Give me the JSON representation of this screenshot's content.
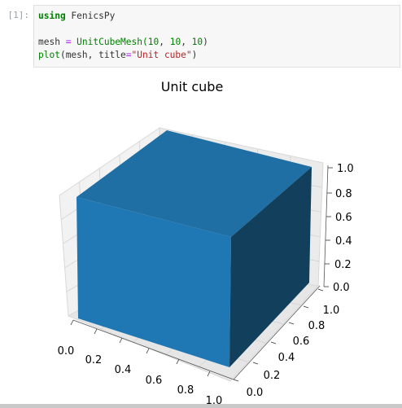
{
  "cell": {
    "prompt": "[1]:",
    "code": {
      "line1_kw": "using",
      "line1_rest": " FenicsPy",
      "line3_var": "mesh ",
      "line3_eq": "=",
      "line3_fn": " UnitCubeMesh(",
      "line3_a": "10",
      "line3_s1": ", ",
      "line3_b": "10",
      "line3_s2": ", ",
      "line3_c": "10",
      "line3_close": ")",
      "line4_fn": "plot",
      "line4_mid": "(mesh, title",
      "line4_eq": "=",
      "line4_str": "\"Unit cube\"",
      "line4_close": ")"
    }
  },
  "plot": {
    "title": "Unit cube",
    "face_colors": {
      "top": "#1f6fa5",
      "front": "#1f77b4",
      "right": "#123f5c"
    },
    "x_ticks": [
      "0.0",
      "0.2",
      "0.4",
      "0.6",
      "0.8",
      "1.0"
    ],
    "y_ticks": [
      "0.0",
      "0.2",
      "0.4",
      "0.6",
      "0.8",
      "1.0"
    ],
    "z_ticks": [
      "0.0",
      "0.2",
      "0.4",
      "0.6",
      "0.8",
      "1.0"
    ]
  }
}
